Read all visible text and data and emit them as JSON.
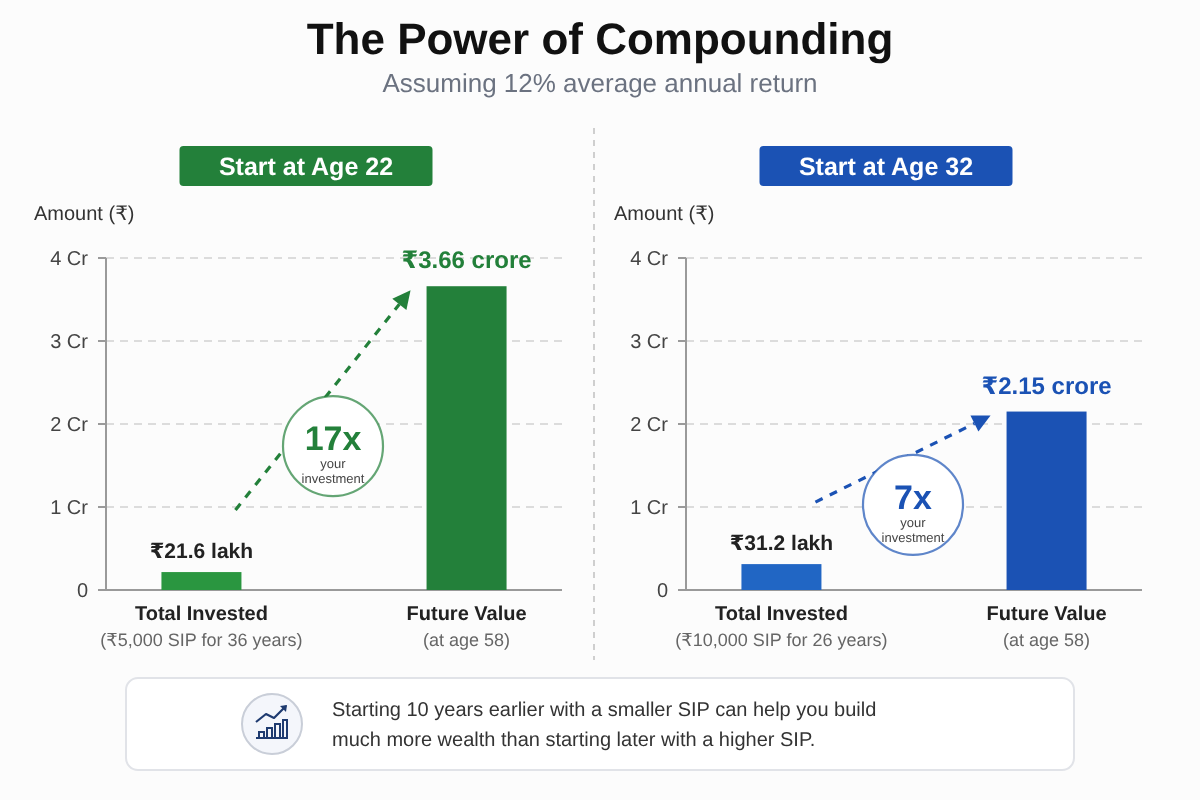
{
  "chart_data": [
    {
      "type": "other",
      "title": "The Power of Compounding",
      "subtitle": "Assuming 12% average annual return"
    },
    {
      "type": "bar",
      "title": "Start at Age 22",
      "ylabel": "Amount (₹)",
      "categories": [
        "Total Invested\n(₹5,000 SIP for 36 years)",
        "Future Value\n(at age 58)"
      ],
      "values": [
        0.216,
        3.66
      ],
      "colors": [
        "#2a9640",
        "#23803a"
      ],
      "value_labels": [
        null,
        "₹3.66 crore"
      ],
      "ylim": [
        0,
        4
      ],
      "yticks": [
        0,
        {
          "value": 1,
          "label": "1 Cr"
        },
        {
          "value": 2,
          "label": "2 Cr"
        },
        {
          "value": 3,
          "label": "3 Cr"
        },
        {
          "value": 4,
          "label": "4 Cr"
        }
      ],
      "grid": "y",
      "annotations": [
        "17x",
        "your investment",
        {
          "text": "₹21.6 lakh",
          "x": "Total Invested\n(₹5,000 SIP for 36 years)",
          "y": 0.216
        }
      ]
    },
    {
      "type": "bar",
      "title": "Start at Age 32",
      "ylabel": "Amount (₹)",
      "categories": [
        "Total Invested\n(₹10,000 SIP for 26 years)",
        "Future Value\n(at age 58)"
      ],
      "values": [
        0.312,
        2.15
      ],
      "colors": [
        "#2166c4",
        "#1b52b4"
      ],
      "value_labels": [
        null,
        "₹2.15 crore"
      ],
      "ylim": [
        0,
        4
      ],
      "yticks": [
        0,
        {
          "value": 1,
          "label": "1 Cr"
        },
        {
          "value": 2,
          "label": "2 Cr"
        },
        {
          "value": 3,
          "label": "3 Cr"
        },
        {
          "value": 4,
          "label": "4 Cr"
        }
      ],
      "grid": "y",
      "annotations": [
        "7x",
        "your investment",
        {
          "text": "₹31.2 lakh",
          "x": "Total Invested\n(₹10,000 SIP for 26 years)",
          "y": 0.312
        }
      ]
    },
    {
      "type": "other",
      "annotations": [
        "Starting 10 years earlier with a smaller SIP can help you build much more wealth than starting later with a higher SIP."
      ]
    }
  ]
}
